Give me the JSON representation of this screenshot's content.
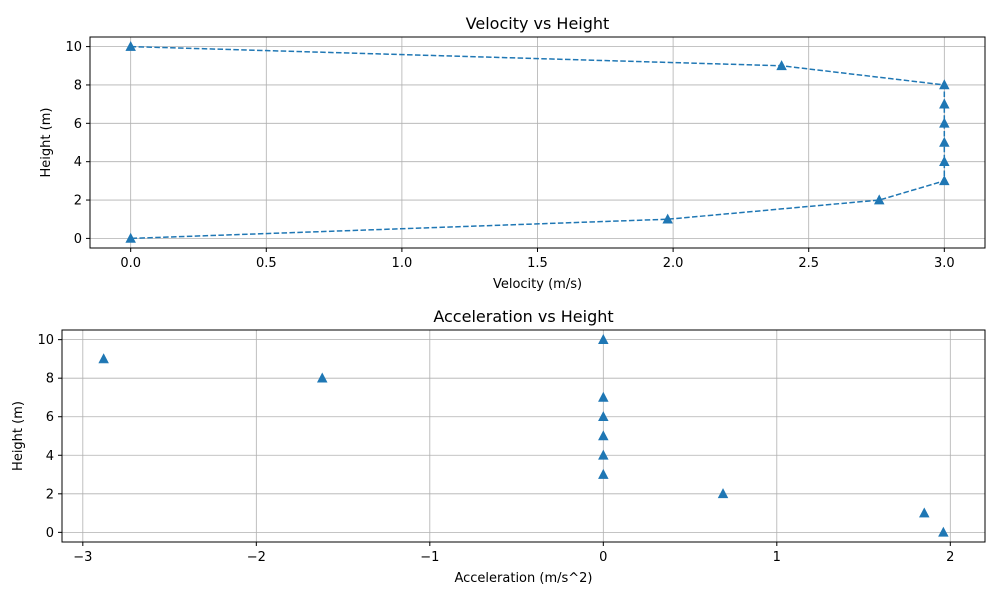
{
  "chart_data": [
    {
      "type": "line",
      "title": "Velocity vs Height",
      "xlabel": "Velocity (m/s)",
      "ylabel": "Height (m)",
      "xlim": [
        -0.15,
        3.15
      ],
      "ylim": [
        -0.5,
        10.5
      ],
      "xticks": [
        0.0,
        0.5,
        1.0,
        1.5,
        2.0,
        2.5,
        3.0
      ],
      "xtick_labels": [
        "0.0",
        "0.5",
        "1.0",
        "1.5",
        "2.0",
        "2.5",
        "3.0"
      ],
      "yticks": [
        0,
        2,
        4,
        6,
        8,
        10
      ],
      "ytick_labels": [
        "0",
        "2",
        "4",
        "6",
        "8",
        "10"
      ],
      "grid": true,
      "line_style": "dashed",
      "marker": "triangle-up",
      "color": "#1f77b4",
      "series": [
        {
          "x": [
            0.0,
            2.4,
            3.0,
            3.0,
            3.0,
            3.0,
            3.0,
            3.0,
            2.76,
            1.98,
            0.0
          ],
          "y": [
            10,
            9,
            8,
            7,
            6,
            5,
            4,
            3,
            2,
            1,
            0
          ]
        }
      ]
    },
    {
      "type": "scatter",
      "title": "Acceleration vs Height",
      "xlabel": "Acceleration (m/s^2)",
      "ylabel": "Height (m)",
      "xlim": [
        -3.12,
        2.2
      ],
      "ylim": [
        -0.5,
        10.5
      ],
      "xticks": [
        -3,
        -2,
        -1,
        0,
        1,
        2
      ],
      "xtick_labels": [
        "−3",
        "−2",
        "−1",
        "0",
        "1",
        "2"
      ],
      "yticks": [
        0,
        2,
        4,
        6,
        8,
        10
      ],
      "ytick_labels": [
        "0",
        "2",
        "4",
        "6",
        "8",
        "10"
      ],
      "grid": true,
      "marker": "triangle-up",
      "color": "#1f77b4",
      "series": [
        {
          "x": [
            0.0,
            -2.88,
            -1.62,
            0.0,
            0.0,
            0.0,
            0.0,
            0.0,
            0.69,
            1.85,
            1.96
          ],
          "y": [
            10,
            9,
            8,
            7,
            6,
            5,
            4,
            3,
            2,
            1,
            0
          ]
        }
      ]
    }
  ]
}
